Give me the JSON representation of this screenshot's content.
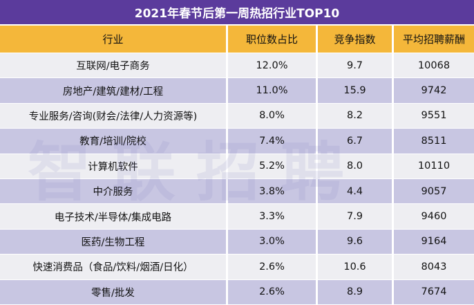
{
  "title": "2021年春节后第一周热招行业TOP10",
  "watermark": "智联招聘",
  "table": {
    "headers": [
      "行业",
      "职位数占比",
      "竞争指数",
      "平均招聘薪酬"
    ],
    "rows": [
      [
        "互联网/电子商务",
        "12.0%",
        "9.7",
        "10068"
      ],
      [
        "房地产/建筑/建材/工程",
        "11.0%",
        "15.9",
        "9742"
      ],
      [
        "专业服务/咨询(财会/法律/人力资源等)",
        "8.0%",
        "8.2",
        "9551"
      ],
      [
        "教育/培训/院校",
        "7.4%",
        "6.7",
        "8511"
      ],
      [
        "计算机软件",
        "5.2%",
        "8.0",
        "10110"
      ],
      [
        "中介服务",
        "3.8%",
        "4.4",
        "9057"
      ],
      [
        "电子技术/半导体/集成电路",
        "3.3%",
        "7.9",
        "9460"
      ],
      [
        "医药/生物工程",
        "3.0%",
        "9.6",
        "9164"
      ],
      [
        "快速消费品（食品/饮料/烟酒/日化）",
        "2.6%",
        "10.6",
        "8043"
      ],
      [
        "零售/批发",
        "2.6%",
        "8.9",
        "7674"
      ]
    ]
  }
}
